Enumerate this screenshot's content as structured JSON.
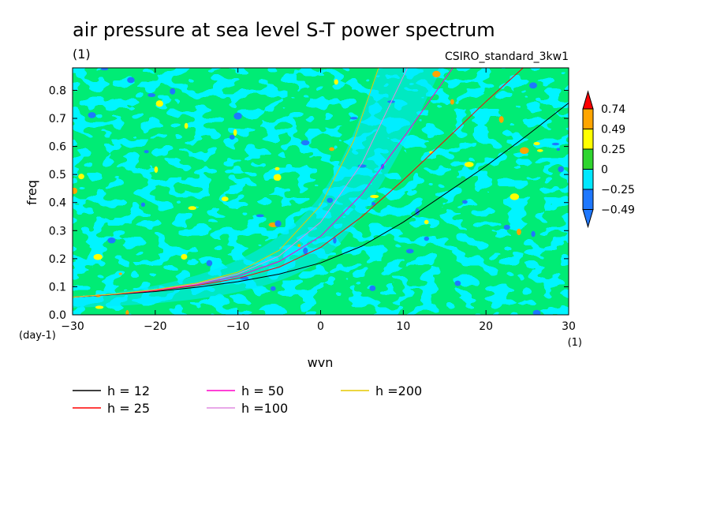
{
  "title": "air pressure at sea level S-T power spectrum",
  "subtitle_units": "(1)",
  "model_label": "CSIRO_standard_3kw1",
  "chart_data": {
    "type": "heatmap",
    "xlabel": "wvn",
    "ylabel": "freq",
    "x_unit": "(1)",
    "y_unit": "(day-1)",
    "xlim": [
      -30,
      30
    ],
    "ylim": [
      0,
      0.88
    ],
    "x_ticks": [
      -30,
      -20,
      -10,
      0,
      10,
      20,
      30
    ],
    "y_ticks": [
      0.0,
      0.1,
      0.2,
      0.3,
      0.4,
      0.5,
      0.6,
      0.7,
      0.8
    ],
    "x_tick_labels": [
      "−30",
      "−20",
      "−10",
      "0",
      "10",
      "20",
      "30"
    ],
    "y_tick_labels": [
      "0.0",
      "0.1",
      "0.2",
      "0.3",
      "0.4",
      "0.5",
      "0.6",
      "0.7",
      "0.8"
    ],
    "colorbar": {
      "levels": [
        -0.49,
        -0.25,
        0,
        0.25,
        0.49,
        0.74
      ],
      "level_labels": [
        "−0.49",
        "−0.25",
        "0",
        "0.25",
        "0.49",
        "0.74"
      ],
      "colors": [
        "#1e78ff",
        "#00e8ff",
        "#2fd52f",
        "#ffff00",
        "#ffa500",
        "#ff0000"
      ],
      "extend": "both"
    },
    "series": [
      {
        "name": "h = 12",
        "color": "#000000",
        "x": [
          -30,
          -25,
          -20,
          -15,
          -10,
          -5,
          0,
          5,
          10,
          15,
          20,
          25,
          30
        ],
        "y": [
          0.063,
          0.072,
          0.083,
          0.098,
          0.118,
          0.145,
          0.185,
          0.245,
          0.33,
          0.43,
          0.53,
          0.64,
          0.755
        ]
      },
      {
        "name": "h = 25",
        "color": "#ff0000",
        "x": [
          -30,
          -25,
          -20,
          -15,
          -10,
          -5,
          0,
          5,
          10,
          15,
          20,
          24.5
        ],
        "y": [
          0.063,
          0.073,
          0.086,
          0.104,
          0.13,
          0.17,
          0.24,
          0.35,
          0.48,
          0.62,
          0.76,
          0.88
        ]
      },
      {
        "name": "h = 50",
        "color": "#ff00c8",
        "x": [
          -30,
          -25,
          -20,
          -15,
          -10,
          -5,
          0,
          5,
          10,
          16
        ],
        "y": [
          0.063,
          0.073,
          0.088,
          0.108,
          0.138,
          0.19,
          0.28,
          0.43,
          0.63,
          0.88
        ]
      },
      {
        "name": "h =100",
        "color": "#e08ce0",
        "x": [
          -30,
          -25,
          -20,
          -15,
          -10,
          -5,
          0,
          5,
          10.5
        ],
        "y": [
          0.063,
          0.074,
          0.089,
          0.11,
          0.146,
          0.21,
          0.33,
          0.54,
          0.88
        ]
      },
      {
        "name": "h =200",
        "color": "#e6c800",
        "x": [
          -30,
          -25,
          -20,
          -15,
          -10,
          -5,
          0,
          4,
          7
        ],
        "y": [
          0.063,
          0.074,
          0.09,
          0.113,
          0.152,
          0.23,
          0.39,
          0.62,
          0.88
        ]
      }
    ],
    "legend_position": "bottom",
    "grid": false
  }
}
